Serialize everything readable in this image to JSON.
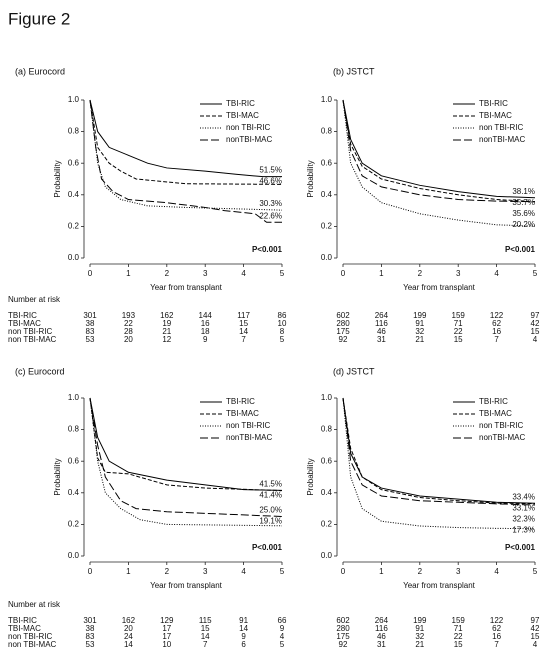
{
  "title": "Figure 2",
  "chart_data": [
    {
      "type": "line",
      "label": "(a) Eurocord",
      "xlabel": "Year from transplant",
      "ylabel": "Probability",
      "xlim": [
        0,
        5
      ],
      "ylim": [
        0,
        1
      ],
      "xticks": [
        0,
        1,
        2,
        3,
        4,
        5
      ],
      "yticks": [
        {
          "value": 0,
          "label": "0.0"
        },
        0.2,
        0.4,
        0.6,
        0.8,
        {
          "value": 1,
          "label": "1.0"
        }
      ],
      "annotation": "P<0.001",
      "series": [
        {
          "name": "TBI-RIC",
          "color": "#000000",
          "dash": "solid",
          "end_label": "51.5%",
          "x": [
            0,
            0.2,
            0.5,
            1,
            1.5,
            2,
            3,
            3.8,
            4.5,
            5
          ],
          "values": [
            1,
            0.8,
            0.7,
            0.65,
            0.6,
            0.57,
            0.55,
            0.53,
            0.515,
            0.515
          ]
        },
        {
          "name": "TBI-MAC",
          "color": "#000000",
          "dash": "dashed",
          "end_label": "46.6%",
          "x": [
            0,
            0.2,
            0.5,
            0.8,
            1.2,
            2.5,
            5
          ],
          "values": [
            1,
            0.7,
            0.6,
            0.55,
            0.5,
            0.47,
            0.466
          ]
        },
        {
          "name": "non TBI-RIC",
          "color": "#000000",
          "dash": "dotted",
          "end_label": "30.3%",
          "x": [
            0,
            0.2,
            0.4,
            0.8,
            1.5,
            2.5,
            5
          ],
          "values": [
            1,
            0.6,
            0.45,
            0.37,
            0.33,
            0.32,
            0.303
          ]
        },
        {
          "name": "nonTBI-MAC",
          "color": "#000000",
          "dash": "longdash",
          "end_label": "22.6%",
          "x": [
            0,
            0.15,
            0.3,
            0.6,
            1,
            2,
            3,
            3.5,
            4.3,
            4.6,
            5
          ],
          "values": [
            1,
            0.7,
            0.5,
            0.42,
            0.37,
            0.35,
            0.32,
            0.3,
            0.28,
            0.226,
            0.226
          ]
        }
      ],
      "risk_table": {
        "title": "Number at risk",
        "rows": [
          {
            "name": "TBI-RIC",
            "values": [
              301,
              193,
              162,
              144,
              117,
              86
            ]
          },
          {
            "name": "TBI-MAC",
            "values": [
              38,
              22,
              19,
              16,
              15,
              10
            ]
          },
          {
            "name": "non TBI-RIC",
            "values": [
              83,
              28,
              21,
              18,
              14,
              8
            ]
          },
          {
            "name": "non TBI-MAC",
            "values": [
              53,
              20,
              12,
              9,
              7,
              5
            ]
          }
        ]
      }
    },
    {
      "type": "line",
      "label": "(b) JSTCT",
      "xlabel": "Year from transplant",
      "ylabel": "Probability",
      "xlim": [
        0,
        5
      ],
      "ylim": [
        0,
        1
      ],
      "xticks": [
        0,
        1,
        2,
        3,
        4,
        5
      ],
      "yticks": [
        {
          "value": 0,
          "label": "0.0"
        },
        0.2,
        0.4,
        0.6,
        0.8,
        {
          "value": 1,
          "label": "1.0"
        }
      ],
      "annotation": "P<0.001",
      "series": [
        {
          "name": "TBI-RIC",
          "color": "#000000",
          "dash": "solid",
          "end_label": "38.1%",
          "x": [
            0,
            0.2,
            0.5,
            1,
            2,
            3,
            4,
            5
          ],
          "values": [
            1,
            0.75,
            0.6,
            0.52,
            0.46,
            0.42,
            0.39,
            0.381
          ]
        },
        {
          "name": "TBI-MAC",
          "color": "#000000",
          "dash": "dashed",
          "end_label": "35.7%",
          "x": [
            0,
            0.2,
            0.5,
            1,
            2,
            3,
            4,
            5
          ],
          "values": [
            1,
            0.72,
            0.58,
            0.5,
            0.44,
            0.4,
            0.37,
            0.357
          ]
        },
        {
          "name": "non TBI-RIC",
          "color": "#000000",
          "dash": "dotted",
          "end_label": "20.2%",
          "x": [
            0,
            0.2,
            0.5,
            1,
            2,
            3,
            4,
            5
          ],
          "values": [
            1,
            0.6,
            0.45,
            0.35,
            0.28,
            0.24,
            0.21,
            0.202
          ]
        },
        {
          "name": "nonTBI-MAC",
          "color": "#000000",
          "dash": "longdash",
          "end_label": "35.6%",
          "x": [
            0,
            0.2,
            0.5,
            1,
            2,
            3,
            4,
            5
          ],
          "values": [
            1,
            0.68,
            0.52,
            0.45,
            0.4,
            0.37,
            0.36,
            0.356
          ]
        }
      ],
      "risk_table": {
        "rows": [
          {
            "values": [
              602,
              264,
              199,
              159,
              122,
              97
            ]
          },
          {
            "values": [
              280,
              116,
              91,
              71,
              62,
              42
            ]
          },
          {
            "values": [
              175,
              46,
              32,
              22,
              16,
              15
            ]
          },
          {
            "values": [
              92,
              31,
              21,
              15,
              7,
              4
            ]
          }
        ]
      }
    },
    {
      "type": "line",
      "label": "(c) Eurocord",
      "xlabel": "Year from transplant",
      "ylabel": "Probability",
      "xlim": [
        0,
        5
      ],
      "ylim": [
        0,
        1
      ],
      "xticks": [
        0,
        1,
        2,
        3,
        4,
        5
      ],
      "yticks": [
        {
          "value": 0,
          "label": "0.0"
        },
        0.2,
        0.4,
        0.6,
        0.8,
        {
          "value": 1,
          "label": "1.0"
        }
      ],
      "annotation": "P<0.001",
      "series": [
        {
          "name": "TBI-RIC",
          "color": "#000000",
          "dash": "solid",
          "end_label": "41.5%",
          "x": [
            0,
            0.2,
            0.5,
            1,
            2,
            3,
            4,
            5
          ],
          "values": [
            1,
            0.75,
            0.6,
            0.53,
            0.48,
            0.45,
            0.42,
            0.415
          ]
        },
        {
          "name": "TBI-MAC",
          "color": "#000000",
          "dash": "dashed",
          "end_label": "41.4%",
          "x": [
            0,
            0.2,
            0.4,
            1,
            2,
            3,
            5
          ],
          "values": [
            1,
            0.62,
            0.53,
            0.52,
            0.45,
            0.43,
            0.414
          ]
        },
        {
          "name": "non TBI-RIC",
          "color": "#000000",
          "dash": "dotted",
          "end_label": "19.1%",
          "x": [
            0,
            0.2,
            0.4,
            0.8,
            1.3,
            2,
            5
          ],
          "values": [
            1,
            0.6,
            0.4,
            0.3,
            0.23,
            0.2,
            0.191
          ]
        },
        {
          "name": "nonTBI-MAC",
          "color": "#000000",
          "dash": "longdash",
          "end_label": "25.0%",
          "x": [
            0,
            0.2,
            0.4,
            0.8,
            1.2,
            2,
            3,
            4,
            5
          ],
          "values": [
            1,
            0.7,
            0.5,
            0.35,
            0.3,
            0.28,
            0.27,
            0.26,
            0.25
          ]
        }
      ],
      "risk_table": {
        "title": "Number at risk",
        "rows": [
          {
            "name": "TBI-RIC",
            "values": [
              301,
              162,
              129,
              115,
              91,
              66
            ]
          },
          {
            "name": "TBI-MAC",
            "values": [
              38,
              20,
              17,
              15,
              14,
              9
            ]
          },
          {
            "name": "non TBI-RIC",
            "values": [
              83,
              24,
              17,
              14,
              9,
              4
            ]
          },
          {
            "name": "non TBI-MAC",
            "values": [
              53,
              14,
              10,
              7,
              6,
              5
            ]
          }
        ]
      }
    },
    {
      "type": "line",
      "label": "(d) JSTCT",
      "xlabel": "Year from transplant",
      "ylabel": "Probability",
      "xlim": [
        0,
        5
      ],
      "ylim": [
        0,
        1
      ],
      "xticks": [
        0,
        1,
        2,
        3,
        4,
        5
      ],
      "yticks": [
        {
          "value": 0,
          "label": "0.0"
        },
        0.2,
        0.4,
        0.6,
        0.8,
        {
          "value": 1,
          "label": "1.0"
        }
      ],
      "annotation": "P<0.001",
      "series": [
        {
          "name": "TBI-RIC",
          "color": "#000000",
          "dash": "solid",
          "end_label": "33.4%",
          "x": [
            0,
            0.2,
            0.5,
            1,
            2,
            3,
            4,
            5
          ],
          "values": [
            1,
            0.65,
            0.5,
            0.43,
            0.38,
            0.36,
            0.34,
            0.334
          ]
        },
        {
          "name": "TBI-MAC",
          "color": "#000000",
          "dash": "dashed",
          "end_label": "33.1%",
          "x": [
            0,
            0.2,
            0.5,
            1,
            2,
            3,
            4,
            5
          ],
          "values": [
            1,
            0.68,
            0.5,
            0.42,
            0.37,
            0.35,
            0.335,
            0.331
          ]
        },
        {
          "name": "non TBI-RIC",
          "color": "#000000",
          "dash": "dotted",
          "end_label": "17.3%",
          "x": [
            0,
            0.2,
            0.5,
            1,
            2,
            3,
            4,
            5
          ],
          "values": [
            1,
            0.5,
            0.3,
            0.22,
            0.19,
            0.18,
            0.175,
            0.173
          ]
        },
        {
          "name": "nonTBI-MAC",
          "color": "#000000",
          "dash": "longdash",
          "end_label": "32.3%",
          "x": [
            0,
            0.2,
            0.5,
            1,
            2,
            3,
            4,
            5
          ],
          "values": [
            1,
            0.6,
            0.45,
            0.38,
            0.35,
            0.34,
            0.33,
            0.323
          ]
        }
      ],
      "risk_table": {
        "rows": [
          {
            "values": [
              602,
              264,
              199,
              159,
              122,
              97
            ]
          },
          {
            "values": [
              280,
              116,
              91,
              71,
              62,
              42
            ]
          },
          {
            "values": [
              175,
              46,
              32,
              22,
              16,
              15
            ]
          },
          {
            "values": [
              92,
              31,
              21,
              15,
              7,
              4
            ]
          }
        ]
      }
    }
  ]
}
